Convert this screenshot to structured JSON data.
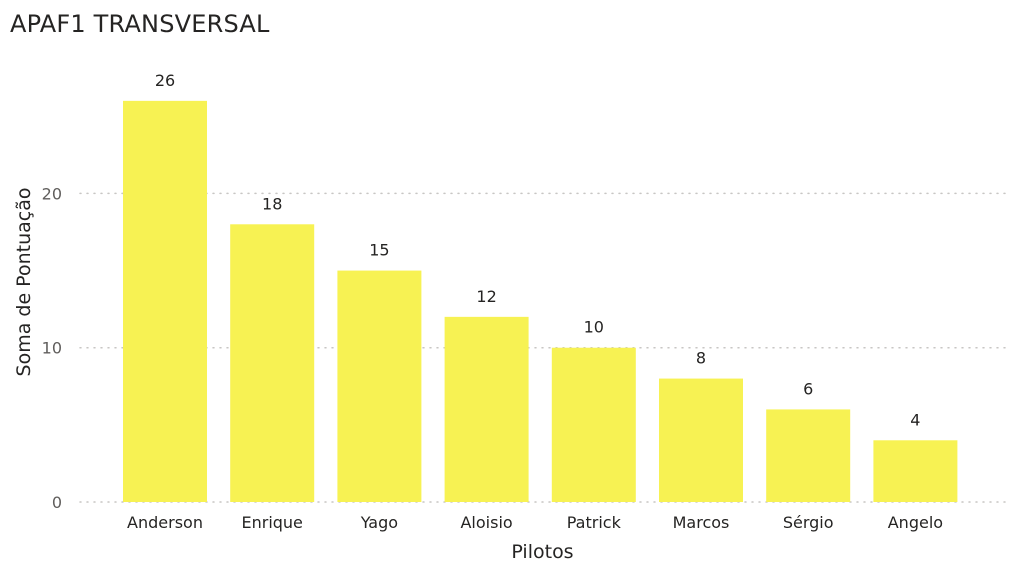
{
  "chart_data": {
    "type": "bar",
    "title": "APAF1 TRANSVERSAL",
    "xlabel": "Pilotos",
    "ylabel": "Soma de Pontuação",
    "categories": [
      "Anderson",
      "Enrique",
      "Yago",
      "Aloisio",
      "Patrick",
      "Marcos",
      "Sérgio",
      "Angelo"
    ],
    "values": [
      26,
      18,
      15,
      12,
      10,
      8,
      6,
      4
    ],
    "ylim": [
      0,
      28
    ],
    "yticks": [
      0,
      10,
      20
    ],
    "grid": true,
    "bar_color": "#f7f253",
    "data_labels": true
  }
}
